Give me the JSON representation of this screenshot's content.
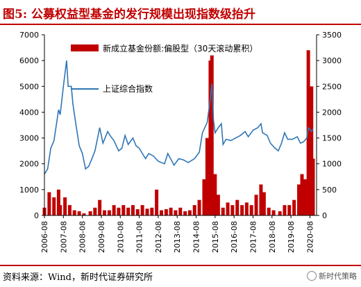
{
  "title": "图5:  公募权益型基金的发行规模出现指数级抬升",
  "source": "资料来源：Wind，新时代证券研究所",
  "watermark": "新时代策略",
  "colors": {
    "title": "#c00000",
    "bar": "#c00000",
    "line": "#2e75b6"
  },
  "chart_data": {
    "type": "bar+line",
    "title": "",
    "x_ticks": [
      "2006-08",
      "2007-08",
      "2008-08",
      "2009-08",
      "2010-08",
      "2011-08",
      "2012-08",
      "2013-08",
      "2014-08",
      "2015-08",
      "2016-08",
      "2017-08",
      "2018-08",
      "2019-08",
      "2020-08"
    ],
    "y_left": {
      "ticks": [
        0,
        1000,
        2000,
        3000,
        4000,
        5000,
        6000,
        7000
      ],
      "range": [
        0,
        7000
      ]
    },
    "y_right": {
      "ticks": [
        0,
        500,
        1000,
        1500,
        2000,
        2500,
        3000,
        3500
      ],
      "range": [
        0,
        3500
      ]
    },
    "grid": false,
    "legend_position": "top",
    "series": [
      {
        "name": "新成立基金份额:偏股型（30天滚动累积）",
        "type": "bar",
        "axis": "right",
        "points": [
          [
            "2006-08",
            150
          ],
          [
            "2006-11",
            450
          ],
          [
            "2007-02",
            350
          ],
          [
            "2007-05",
            500
          ],
          [
            "2007-06",
            200
          ],
          [
            "2007-09",
            350
          ],
          [
            "2007-12",
            200
          ],
          [
            "2008-03",
            100
          ],
          [
            "2008-06",
            80
          ],
          [
            "2008-09",
            40
          ],
          [
            "2009-01",
            80
          ],
          [
            "2009-04",
            150
          ],
          [
            "2009-07",
            300
          ],
          [
            "2009-10",
            100
          ],
          [
            "2010-01",
            100
          ],
          [
            "2010-04",
            200
          ],
          [
            "2010-07",
            150
          ],
          [
            "2010-10",
            200
          ],
          [
            "2011-01",
            150
          ],
          [
            "2011-04",
            200
          ],
          [
            "2011-07",
            120
          ],
          [
            "2011-10",
            200
          ],
          [
            "2012-01",
            130
          ],
          [
            "2012-04",
            150
          ],
          [
            "2012-07",
            500
          ],
          [
            "2012-10",
            100
          ],
          [
            "2013-01",
            120
          ],
          [
            "2013-04",
            150
          ],
          [
            "2013-07",
            100
          ],
          [
            "2013-10",
            150
          ],
          [
            "2014-01",
            80
          ],
          [
            "2014-04",
            100
          ],
          [
            "2014-07",
            200
          ],
          [
            "2014-10",
            300
          ],
          [
            "2015-01",
            700
          ],
          [
            "2015-03",
            1500
          ],
          [
            "2015-05",
            3000
          ],
          [
            "2015-06",
            3100
          ],
          [
            "2015-08",
            800
          ],
          [
            "2015-10",
            400
          ],
          [
            "2016-01",
            150
          ],
          [
            "2016-04",
            250
          ],
          [
            "2016-07",
            200
          ],
          [
            "2016-10",
            300
          ],
          [
            "2017-01",
            200
          ],
          [
            "2017-04",
            250
          ],
          [
            "2017-07",
            200
          ],
          [
            "2017-10",
            400
          ],
          [
            "2018-01",
            600
          ],
          [
            "2018-03",
            450
          ],
          [
            "2018-06",
            150
          ],
          [
            "2018-09",
            100
          ],
          [
            "2019-01",
            80
          ],
          [
            "2019-04",
            200
          ],
          [
            "2019-07",
            200
          ],
          [
            "2019-10",
            300
          ],
          [
            "2020-01",
            600
          ],
          [
            "2020-03",
            800
          ],
          [
            "2020-05",
            700
          ],
          [
            "2020-07",
            3200
          ],
          [
            "2020-08",
            2100
          ],
          [
            "2020-09",
            2500
          ],
          [
            "2020-10",
            1100
          ]
        ]
      },
      {
        "name": "上证综合指数",
        "type": "line",
        "axis": "left",
        "points": [
          [
            "2006-08",
            1600
          ],
          [
            "2006-10",
            1800
          ],
          [
            "2006-12",
            2600
          ],
          [
            "2007-02",
            2900
          ],
          [
            "2007-04",
            3700
          ],
          [
            "2007-05",
            4100
          ],
          [
            "2007-06",
            3900
          ],
          [
            "2007-08",
            5000
          ],
          [
            "2007-10",
            6000
          ],
          [
            "2007-11",
            5000
          ],
          [
            "2008-01",
            5000
          ],
          [
            "2008-02",
            4300
          ],
          [
            "2008-04",
            3500
          ],
          [
            "2008-06",
            2700
          ],
          [
            "2008-08",
            2400
          ],
          [
            "2008-10",
            1800
          ],
          [
            "2008-12",
            1900
          ],
          [
            "2009-02",
            2200
          ],
          [
            "2009-04",
            2500
          ],
          [
            "2009-07",
            3400
          ],
          [
            "2009-09",
            2800
          ],
          [
            "2009-12",
            3250
          ],
          [
            "2010-02",
            3050
          ],
          [
            "2010-04",
            2900
          ],
          [
            "2010-07",
            2500
          ],
          [
            "2010-09",
            2600
          ],
          [
            "2010-11",
            3100
          ],
          [
            "2011-01",
            2750
          ],
          [
            "2011-04",
            3000
          ],
          [
            "2011-06",
            2700
          ],
          [
            "2011-08",
            2600
          ],
          [
            "2011-10",
            2400
          ],
          [
            "2011-12",
            2200
          ],
          [
            "2012-02",
            2400
          ],
          [
            "2012-05",
            2300
          ],
          [
            "2012-08",
            2100
          ],
          [
            "2012-12",
            2000
          ],
          [
            "2013-02",
            2400
          ],
          [
            "2013-06",
            1950
          ],
          [
            "2013-09",
            2200
          ],
          [
            "2013-12",
            2150
          ],
          [
            "2014-03",
            2050
          ],
          [
            "2014-07",
            2200
          ],
          [
            "2014-10",
            2450
          ],
          [
            "2014-12",
            3200
          ],
          [
            "2015-03",
            3600
          ],
          [
            "2015-05",
            4500
          ],
          [
            "2015-06",
            5100
          ],
          [
            "2015-07",
            3700
          ],
          [
            "2015-08",
            3200
          ],
          [
            "2015-10",
            3400
          ],
          [
            "2015-12",
            3550
          ],
          [
            "2016-01",
            2750
          ],
          [
            "2016-03",
            2950
          ],
          [
            "2016-06",
            2900
          ],
          [
            "2016-09",
            3000
          ],
          [
            "2016-12",
            3100
          ],
          [
            "2017-03",
            3250
          ],
          [
            "2017-05",
            3050
          ],
          [
            "2017-08",
            3300
          ],
          [
            "2017-11",
            3400
          ],
          [
            "2018-01",
            3550
          ],
          [
            "2018-02",
            3200
          ],
          [
            "2018-05",
            3100
          ],
          [
            "2018-07",
            2800
          ],
          [
            "2018-10",
            2600
          ],
          [
            "2018-12",
            2500
          ],
          [
            "2019-02",
            2800
          ],
          [
            "2019-04",
            3200
          ],
          [
            "2019-06",
            2950
          ],
          [
            "2019-09",
            2950
          ],
          [
            "2019-12",
            3050
          ],
          [
            "2020-02",
            2800
          ],
          [
            "2020-04",
            2850
          ],
          [
            "2020-06",
            3000
          ],
          [
            "2020-07",
            3400
          ],
          [
            "2020-09",
            3250
          ],
          [
            "2020-10",
            3350
          ]
        ]
      }
    ]
  }
}
